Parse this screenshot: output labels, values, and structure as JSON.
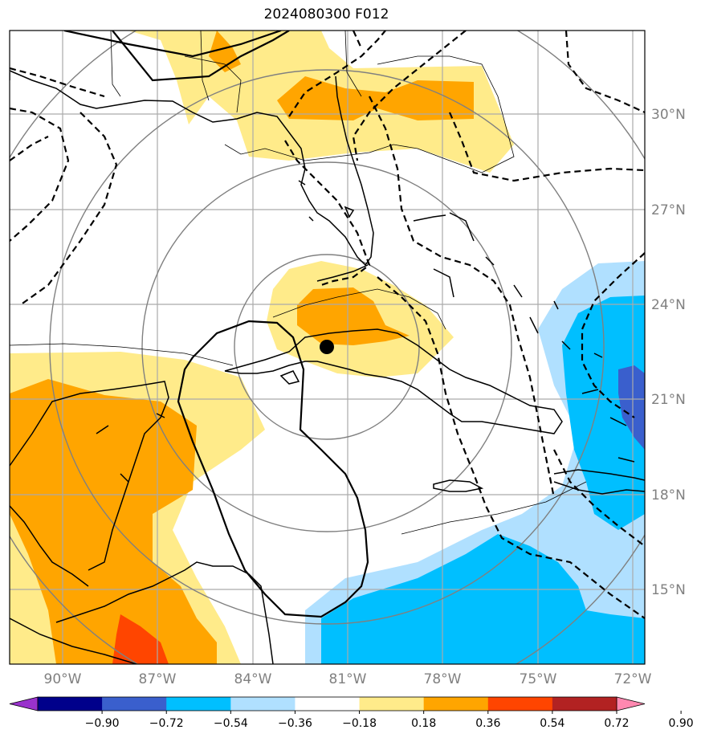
{
  "title": "2024080300 F012",
  "lat_labels": [
    "30°N",
    "27°N",
    "24°N",
    "21°N",
    "18°N",
    "15°N"
  ],
  "lon_labels": [
    "90°W",
    "87°W",
    "84°W",
    "81°W",
    "78°W",
    "75°W",
    "72°W"
  ],
  "storm_center": {
    "lat": 22.8,
    "lon": -81.8
  },
  "colorbar": {
    "colors": [
      "#9932cc",
      "#00008b",
      "#3a5fcd",
      "#00bfff",
      "#b0e0ff",
      "#ffffff",
      "#ffeb8a",
      "#ffa500",
      "#ff4500",
      "#b22222",
      "#ff88b0"
    ],
    "tick_labels": [
      "−0.90",
      "−0.72",
      "−0.54",
      "−0.36",
      "−0.18",
      "0.18",
      "0.36",
      "0.54",
      "0.72",
      "0.90"
    ]
  },
  "legend_colors": {
    "light_yellow": "#ffeb8a",
    "orange": "#ffa500",
    "red_orange": "#ff4500",
    "light_blue": "#b0e0ff",
    "deep_sky": "#00bfff",
    "royal_blue": "#3a5fcd"
  }
}
